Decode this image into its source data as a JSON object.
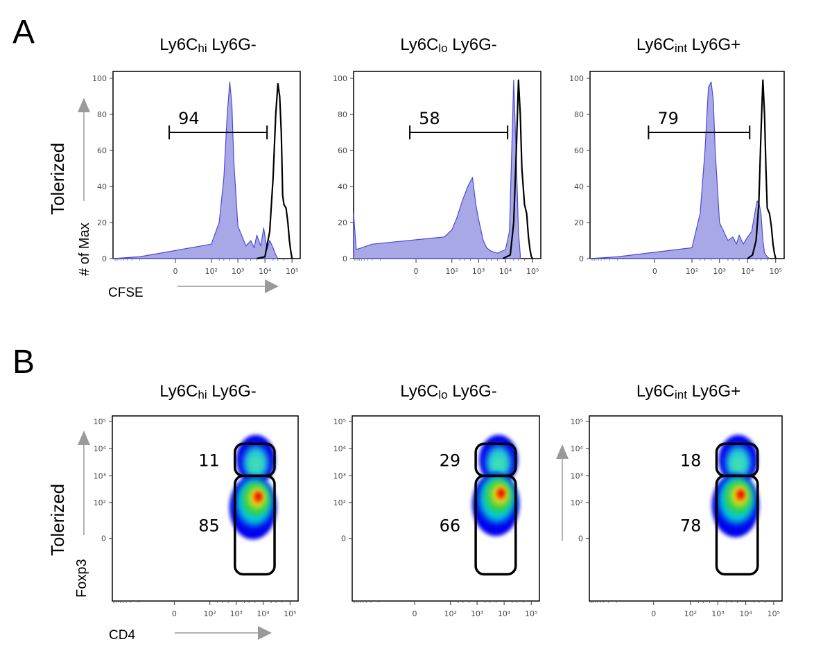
{
  "panel_a": {
    "letter": "A",
    "row_label": "Tolerized",
    "ylabel": "# of Max",
    "xlabel": "CFSE"
  },
  "panel_b": {
    "letter": "B",
    "row_label": "Tolerized",
    "ylabel": "Foxp3",
    "xlabel": "CD4"
  },
  "colors": {
    "histogram_fill": "#a8a8e6",
    "histogram_line": "#4a4ad8",
    "control_line": "#000000",
    "arrow": "#9a9a9a",
    "density_high": "#e00000",
    "density_low": "#0000ee"
  },
  "chart_data": [
    {
      "type": "area",
      "title": "Ly6Chi Ly6G-",
      "title_parts": [
        "Ly6C",
        "hi",
        " Ly6G-"
      ],
      "xlabel": "CFSE",
      "ylabel": "# of Max",
      "x_scale": "biexponential",
      "x_tick_labels": [
        "0",
        "10²",
        "10³",
        "10⁴",
        "10⁵"
      ],
      "y_tick_labels": [
        "0",
        "20",
        "40",
        "60",
        "80",
        "100"
      ],
      "ylim": [
        0,
        100
      ],
      "gate_percent": "94",
      "gate_range": [
        -0.3,
        10000
      ],
      "series": [
        {
          "kind": "filled",
          "x": [
            -1000,
            -100,
            100,
            200,
            300,
            400,
            500,
            600,
            700,
            1000,
            2000,
            3000,
            4000,
            5000,
            7000,
            9000,
            12000,
            15000,
            20000,
            25000,
            30000
          ],
          "values": [
            0,
            1,
            8,
            20,
            45,
            80,
            98,
            85,
            55,
            18,
            7,
            10,
            6,
            13,
            7,
            17,
            5,
            10,
            6,
            2,
            0
          ]
        },
        {
          "kind": "line",
          "x": [
            5000,
            10000,
            15000,
            20000,
            25000,
            30000,
            35000,
            40000,
            45000,
            50000,
            60000,
            70000,
            80000,
            90000,
            100000
          ],
          "values": [
            0,
            1,
            15,
            45,
            80,
            97,
            90,
            70,
            35,
            30,
            28,
            20,
            10,
            4,
            0
          ]
        }
      ]
    },
    {
      "type": "area",
      "title": "Ly6Clo Ly6G-",
      "title_parts": [
        "Ly6C",
        "lo",
        " Ly6G-"
      ],
      "xlabel": "CFSE",
      "ylabel": "# of Max",
      "x_scale": "biexponential",
      "x_tick_labels": [
        "0",
        "10²",
        "10³",
        "10⁴",
        "10⁵"
      ],
      "y_tick_labels": [
        "0",
        "20",
        "40",
        "60",
        "80",
        "100"
      ],
      "ylim": [
        0,
        100
      ],
      "gate_percent": "58",
      "gate_range": [
        -0.3,
        10000
      ],
      "series": [
        {
          "kind": "filled",
          "x": [
            -1000,
            -800,
            -500,
            -200,
            50,
            100,
            150,
            250,
            400,
            600,
            800,
            1000,
            1500,
            2000,
            3000,
            5000,
            10000,
            14000,
            17000,
            20000,
            25000,
            30000,
            35000
          ],
          "values": [
            25,
            5,
            6,
            8,
            12,
            16,
            22,
            32,
            40,
            45,
            30,
            22,
            10,
            6,
            4,
            3,
            5,
            15,
            60,
            99,
            55,
            15,
            2
          ]
        },
        {
          "kind": "line",
          "x": [
            8000,
            15000,
            20000,
            25000,
            30000,
            35000,
            40000,
            50000,
            60000,
            70000,
            80000,
            90000,
            100000
          ],
          "values": [
            0,
            2,
            20,
            60,
            99,
            80,
            50,
            30,
            25,
            12,
            5,
            1,
            0
          ]
        }
      ]
    },
    {
      "type": "area",
      "title": "Ly6Cint Ly6G+",
      "title_parts": [
        "Ly6C",
        "int",
        " Ly6G+"
      ],
      "xlabel": "CFSE",
      "ylabel": "# of Max",
      "x_scale": "biexponential",
      "x_tick_labels": [
        "0",
        "10²",
        "10³",
        "10⁴",
        "10⁵"
      ],
      "y_tick_labels": [
        "0",
        "20",
        "40",
        "60",
        "80",
        "100"
      ],
      "ylim": [
        0,
        100
      ],
      "gate_percent": "79",
      "gate_range": [
        -0.3,
        10000
      ],
      "series": [
        {
          "kind": "filled",
          "x": [
            -1000,
            -100,
            100,
            200,
            300,
            400,
            500,
            600,
            700,
            1000,
            2000,
            3000,
            4000,
            5000,
            7000,
            10000,
            14000,
            18000,
            22000,
            26000,
            30000,
            35000,
            40000,
            50000,
            60000
          ],
          "values": [
            0,
            1,
            6,
            25,
            60,
            95,
            98,
            88,
            60,
            20,
            10,
            12,
            8,
            13,
            8,
            12,
            15,
            25,
            32,
            30,
            25,
            10,
            3,
            1,
            0
          ]
        },
        {
          "kind": "line",
          "x": [
            10000,
            15000,
            20000,
            25000,
            30000,
            35000,
            40000,
            45000,
            50000,
            60000,
            70000,
            80000,
            90000,
            100000
          ],
          "values": [
            0,
            2,
            10,
            30,
            70,
            99,
            80,
            50,
            28,
            25,
            18,
            8,
            3,
            0
          ]
        }
      ]
    },
    {
      "type": "scatter",
      "title": "Ly6Chi Ly6G-",
      "title_parts": [
        "Ly6C",
        "hi",
        " Ly6G-"
      ],
      "xlabel": "CD4",
      "ylabel": "Foxp3",
      "x_scale": "biexponential",
      "y_scale": "biexponential",
      "x_tick_labels": [
        "0",
        "10²",
        "10³",
        "10⁴",
        "10⁵"
      ],
      "y_tick_labels": [
        "0",
        "10²",
        "10³",
        "10⁴",
        "10⁵"
      ],
      "gates": [
        {
          "label": "11",
          "x_range": [
            1000,
            30000
          ],
          "y_range": [
            1000,
            15000
          ]
        },
        {
          "label": "85",
          "x_range": [
            1000,
            30000
          ],
          "y_range": [
            -100,
            1000
          ]
        }
      ],
      "peak": {
        "x": 6000,
        "y": 150
      }
    },
    {
      "type": "scatter",
      "title": "Ly6Clo Ly6G-",
      "title_parts": [
        "Ly6C",
        "lo",
        " Ly6G-"
      ],
      "xlabel": "CD4",
      "ylabel": "Foxp3",
      "x_scale": "biexponential",
      "y_scale": "biexponential",
      "x_tick_labels": [
        "0",
        "10²",
        "10³",
        "10⁴",
        "10⁵"
      ],
      "y_tick_labels": [
        "0",
        "10²",
        "10³",
        "10⁴",
        "10⁵"
      ],
      "gates": [
        {
          "label": "29",
          "x_range": [
            1000,
            30000
          ],
          "y_range": [
            1000,
            15000
          ]
        },
        {
          "label": "66",
          "x_range": [
            1000,
            30000
          ],
          "y_range": [
            -100,
            1000
          ]
        }
      ],
      "peak": {
        "x": 7000,
        "y": 200
      }
    },
    {
      "type": "scatter",
      "title": "Ly6Cint Ly6G+",
      "title_parts": [
        "Ly6C",
        "int",
        " Ly6G+"
      ],
      "xlabel": "CD4",
      "ylabel": "Foxp3",
      "x_scale": "biexponential",
      "y_scale": "biexponential",
      "x_tick_labels": [
        "0",
        "10²",
        "10³",
        "10⁴",
        "10⁵"
      ],
      "y_tick_labels": [
        "0",
        "10²",
        "10³",
        "10⁴",
        "10⁵"
      ],
      "gates": [
        {
          "label": "18",
          "x_range": [
            1000,
            30000
          ],
          "y_range": [
            1000,
            15000
          ]
        },
        {
          "label": "78",
          "x_range": [
            1000,
            30000
          ],
          "y_range": [
            -100,
            1000
          ]
        }
      ],
      "peak": {
        "x": 6000,
        "y": 180
      }
    }
  ]
}
